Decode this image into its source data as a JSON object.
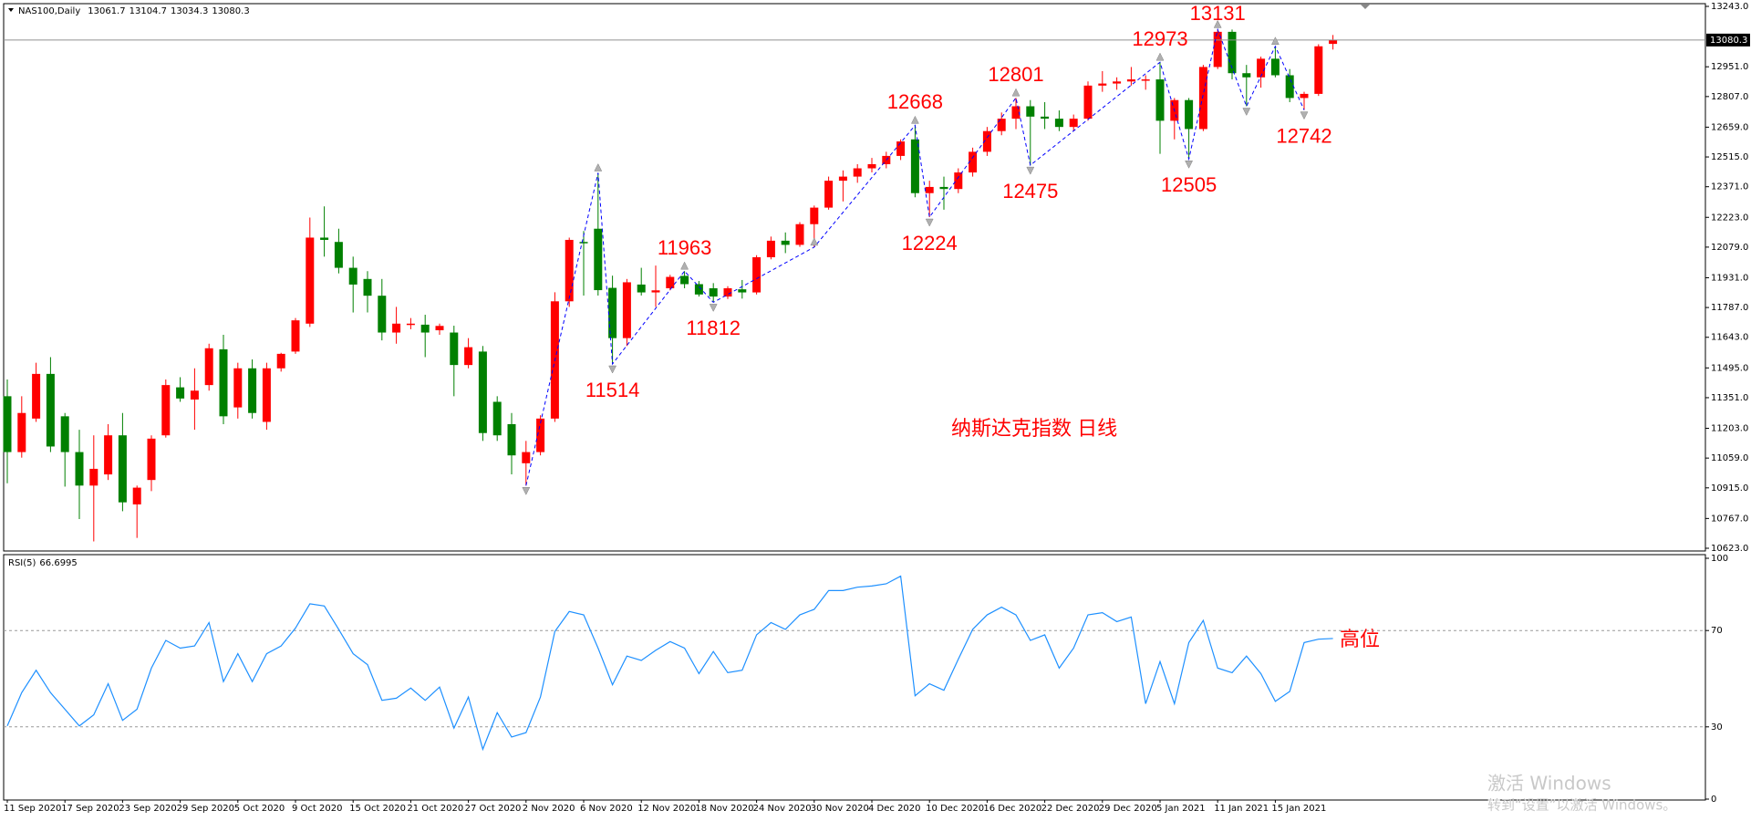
{
  "chart_data": [
    {
      "type": "candlestick",
      "title": "NAS100,Daily",
      "up_color": "#ff0000",
      "down_color": "#008000",
      "open": [
        11358,
        11088,
        11250,
        11466,
        11261,
        11088,
        10926,
        10980,
        11169,
        10835,
        10953,
        11169,
        11401,
        11342,
        11412,
        11585,
        11304,
        11493,
        11234,
        11493,
        11574,
        11709,
        12125,
        12104,
        11979,
        11925,
        11844,
        11666,
        11704,
        11704,
        11677,
        11666,
        11509,
        11574,
        11331,
        11223,
        11034,
        11088,
        11250,
        11817,
        12104,
        12168,
        11882,
        11639,
        11898,
        11860,
        11880,
        11940,
        11900,
        11880,
        11840,
        11875,
        11860,
        12030,
        12110,
        12090,
        12190,
        12270,
        12400,
        12420,
        12460,
        12480,
        12520,
        12600,
        12340,
        12370,
        12360,
        12440,
        12540,
        12640,
        12700,
        12760,
        12710,
        12700,
        12660,
        12700,
        12860,
        12870,
        12880,
        12890,
        12890,
        12690,
        12790,
        12650,
        12950,
        13120,
        12920,
        12900,
        12990,
        12910,
        12800,
        12820,
        13061.7
      ],
      "high": [
        11439,
        11358,
        11520,
        11547,
        11277,
        11196,
        11169,
        11223,
        11277,
        10926,
        11169,
        11439,
        11450,
        11493,
        11612,
        11655,
        11520,
        11536,
        11520,
        11568,
        11736,
        12222,
        12276,
        12168,
        12033,
        11963,
        11925,
        11790,
        11736,
        11752,
        11709,
        11699,
        11639,
        11601,
        11358,
        11277,
        11142,
        11266,
        11861,
        12125,
        12157,
        12438,
        11941,
        11925,
        11979,
        11990,
        11945,
        11963,
        11915,
        11905,
        11890,
        11920,
        12040,
        12130,
        12150,
        12200,
        12280,
        12420,
        12450,
        12480,
        12510,
        12540,
        12600,
        12668,
        12400,
        12420,
        12460,
        12560,
        12660,
        12730,
        12801,
        12790,
        12780,
        12740,
        12720,
        12880,
        12930,
        12900,
        12950,
        12910,
        12973,
        12800,
        12800,
        12960,
        13131,
        13131,
        12960,
        13000,
        13050,
        12940,
        12830,
        13060,
        13104.7
      ],
      "low": [
        10937,
        11061,
        11234,
        11088,
        10921,
        10764,
        10656,
        10953,
        10802,
        10673,
        10899,
        11158,
        11331,
        11196,
        11385,
        11223,
        11250,
        11250,
        11196,
        11477,
        11563,
        11693,
        12033,
        11952,
        11763,
        11763,
        11628,
        11612,
        11682,
        11547,
        11655,
        11358,
        11493,
        11142,
        11142,
        10980,
        10926,
        11072,
        11234,
        11790,
        11845,
        11845,
        11514,
        11601,
        11845,
        11790,
        11870,
        11880,
        11840,
        11812,
        11828,
        11830,
        11850,
        12020,
        12050,
        12080,
        12079,
        12260,
        12300,
        12390,
        12440,
        12460,
        12500,
        12320,
        12224,
        12260,
        12340,
        12420,
        12520,
        12620,
        12650,
        12475,
        12650,
        12640,
        12640,
        12690,
        12830,
        12840,
        12860,
        12840,
        12530,
        12600,
        12505,
        12640,
        12940,
        12890,
        12760,
        12850,
        12900,
        12780,
        12742,
        12810,
        13034.3
      ],
      "close": [
        11088,
        11277,
        11466,
        11115,
        11088,
        10926,
        11007,
        11169,
        10845,
        10916,
        11153,
        11412,
        11347,
        11385,
        11590,
        11261,
        11493,
        11277,
        11493,
        11563,
        11725,
        12125,
        12114,
        11979,
        11898,
        11844,
        11666,
        11709,
        11709,
        11666,
        11698,
        11509,
        11595,
        11180,
        11169,
        11072,
        11088,
        11250,
        11817,
        12114,
        12098,
        11871,
        11639,
        11909,
        11860,
        11870,
        11935,
        11900,
        11850,
        11840,
        11880,
        11860,
        12030,
        12110,
        12090,
        12190,
        12270,
        12400,
        12420,
        12460,
        12480,
        12520,
        12590,
        12340,
        12370,
        12360,
        12440,
        12540,
        12640,
        12700,
        12760,
        12710,
        12700,
        12660,
        12700,
        12860,
        12870,
        12880,
        12890,
        12890,
        12690,
        12790,
        12650,
        12950,
        13120,
        12920,
        12900,
        12990,
        12910,
        12800,
        12820,
        13050,
        13080.3
      ],
      "ylim": [
        10623,
        13243
      ],
      "yticks": [
        {
          "value": 13243,
          "label": "13243.0"
        },
        {
          "value": 12951,
          "label": "12951.0"
        },
        {
          "value": 12807,
          "label": "12807.0"
        },
        {
          "value": 12659,
          "label": "12659.0"
        },
        {
          "value": 12515,
          "label": "12515.0"
        },
        {
          "value": 12371,
          "label": "12371.0"
        },
        {
          "value": 12223,
          "label": "12223.0"
        },
        {
          "value": 12079,
          "label": "12079.0"
        },
        {
          "value": 11931,
          "label": "11931.0"
        },
        {
          "value": 11787,
          "label": "11787.0"
        },
        {
          "value": 11643,
          "label": "11643.0"
        },
        {
          "value": 11495,
          "label": "11495.0"
        },
        {
          "value": 11351,
          "label": "11351.0"
        },
        {
          "value": 11203,
          "label": "11203.0"
        },
        {
          "value": 11059,
          "label": "11059.0"
        },
        {
          "value": 10915,
          "label": "10915.0"
        },
        {
          "value": 10767,
          "label": "10767.0"
        },
        {
          "value": 10623,
          "label": "10623.0"
        }
      ],
      "current_price_line": true,
      "zigzag": {
        "color": "#0000ff",
        "label_color": "#ff0000",
        "x": [
          36,
          41,
          42,
          47,
          49,
          56,
          63,
          64,
          70,
          71,
          80,
          82,
          84,
          86,
          88,
          90
        ],
        "values": [
          10926,
          12438,
          11514,
          11963,
          11812,
          12079,
          12668,
          12224,
          12801,
          12475,
          12973,
          12505,
          13131,
          12760,
          13050,
          12742
        ],
        "labeled": [
          false,
          false,
          true,
          true,
          true,
          false,
          true,
          true,
          true,
          true,
          true,
          true,
          true,
          false,
          false,
          true
        ]
      },
      "annotation": "纳斯达克指数 日线"
    },
    {
      "type": "line",
      "name": "RSI(5)",
      "color": "#1e90ff",
      "categories": [
        "11 Sep 2020",
        null,
        null,
        null,
        "17 Sep 2020",
        null,
        null,
        null,
        "23 Sep 2020",
        null,
        null,
        null,
        "29 Sep 2020",
        null,
        null,
        null,
        "5 Oct 2020",
        null,
        null,
        null,
        "9 Oct 2020",
        null,
        null,
        null,
        "15 Oct 2020",
        null,
        null,
        null,
        "21 Oct 2020",
        null,
        null,
        null,
        "27 Oct 2020",
        null,
        null,
        null,
        "2 Nov 2020",
        null,
        null,
        null,
        "6 Nov 2020",
        null,
        null,
        null,
        "12 Nov 2020",
        null,
        null,
        null,
        "18 Nov 2020",
        null,
        null,
        null,
        "24 Nov 2020",
        null,
        null,
        null,
        "30 Nov 2020",
        null,
        null,
        null,
        "4 Dec 2020",
        null,
        null,
        null,
        "10 Dec 2020",
        null,
        null,
        null,
        "16 Dec 2020",
        null,
        null,
        null,
        "22 Dec 2020",
        null,
        null,
        null,
        "29 Dec 2020",
        null,
        null,
        null,
        "5 Jan 2021",
        null,
        null,
        null,
        "11 Jan 2021",
        null,
        null,
        null,
        "15 Jan 2021",
        null,
        null,
        null,
        null
      ],
      "values": [
        30.4,
        44.2,
        53.5,
        44.2,
        37.3,
        30.4,
        35.0,
        47.9,
        32.7,
        37.3,
        54.4,
        65.9,
        62.7,
        63.6,
        73.3,
        48.8,
        60.4,
        48.8,
        60.4,
        63.6,
        71.0,
        81.1,
        80.2,
        70.5,
        60.4,
        55.8,
        41.0,
        41.9,
        46.1,
        41.0,
        46.5,
        29.5,
        42.4,
        20.7,
        35.9,
        25.8,
        27.6,
        42.4,
        69.6,
        77.9,
        76.5,
        62.7,
        47.5,
        59.4,
        57.6,
        61.8,
        65.4,
        62.7,
        52.1,
        61.3,
        52.5,
        53.5,
        68.2,
        73.3,
        70.5,
        76.5,
        78.8,
        86.6,
        86.6,
        88.0,
        88.5,
        89.4,
        92.6,
        42.9,
        47.9,
        45.2,
        58.1,
        70.5,
        76.5,
        79.7,
        76.5,
        65.9,
        68.2,
        54.4,
        62.7,
        76.5,
        77.4,
        73.7,
        75.6,
        39.6,
        57.1,
        39.6,
        65.0,
        74.2,
        54.4,
        52.5,
        59.4,
        52.1,
        40.6,
        44.7,
        65.0,
        66.4,
        66.6995
      ],
      "ylim": [
        0,
        100
      ],
      "yticks": [
        100,
        70,
        30,
        0
      ],
      "annotation": "高位"
    }
  ],
  "watermark": {
    "title": "激活 Windows",
    "subtitle": "转到“设置”以激活 Windows。"
  }
}
